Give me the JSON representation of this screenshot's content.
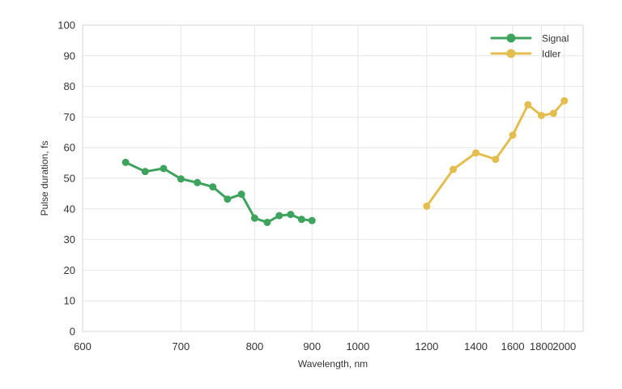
{
  "chart_data": {
    "type": "line",
    "xlabel": "Wavelength, nm",
    "ylabel": "Pulse duration, fs",
    "xscale": "reciprocal",
    "xlim": [
      600,
      2200
    ],
    "ylim": [
      0,
      100
    ],
    "x_ticks": [
      600,
      700,
      800,
      900,
      1000,
      1200,
      1400,
      1600,
      1800,
      2000
    ],
    "y_ticks": [
      0,
      10,
      20,
      30,
      40,
      50,
      60,
      70,
      80,
      90,
      100
    ],
    "grid": true,
    "legend_position": "top-right",
    "series": [
      {
        "name": "Signal",
        "color": "#3da35d",
        "x": [
          640,
          660,
          680,
          700,
          720,
          740,
          760,
          780,
          800,
          820,
          840,
          860,
          880,
          900
        ],
        "y": [
          55.2,
          52.2,
          53.2,
          49.8,
          48.6,
          47.2,
          43.2,
          44.8,
          37.0,
          35.6,
          37.8,
          38.2,
          36.6,
          36.2
        ]
      },
      {
        "name": "Idler",
        "color": "#e3be4e",
        "x": [
          1200,
          1300,
          1400,
          1500,
          1600,
          1700,
          1800,
          1900,
          2000
        ],
        "y": [
          40.9,
          52.9,
          58.3,
          56.2,
          64.1,
          74.0,
          70.5,
          71.2,
          75.3
        ]
      }
    ]
  }
}
